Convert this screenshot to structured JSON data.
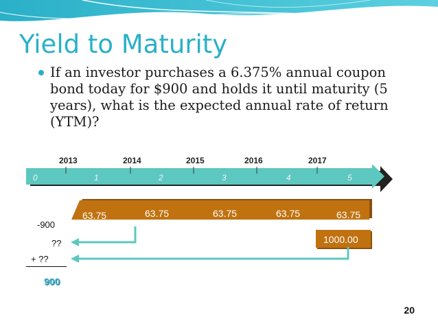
{
  "slide": {
    "title": "Yield to Maturity",
    "bullet": "If an investor purchases a 6.375% annual coupon bond today for $900 and holds it until maturity (5 years), what is the expected annual rate of return (YTM)?",
    "page_number": "20"
  },
  "timeline": {
    "years": [
      "2013",
      "2014",
      "2015",
      "2016",
      "2017"
    ],
    "ticks": [
      "0",
      "1",
      "2",
      "3",
      "4",
      "5"
    ]
  },
  "cash_flows": {
    "coupons": [
      "63.75",
      "63.75",
      "63.75",
      "63.75",
      "63.75"
    ],
    "principal": "1000.00",
    "initial_outflow": "-900",
    "pv_line_1": "??",
    "pv_line_2": "+ ??",
    "price": "900"
  },
  "colors": {
    "title": "#2ab0c8",
    "arrow": "#5cc8c0",
    "cash_box": "#c07210",
    "price": "#4fb6cf"
  }
}
